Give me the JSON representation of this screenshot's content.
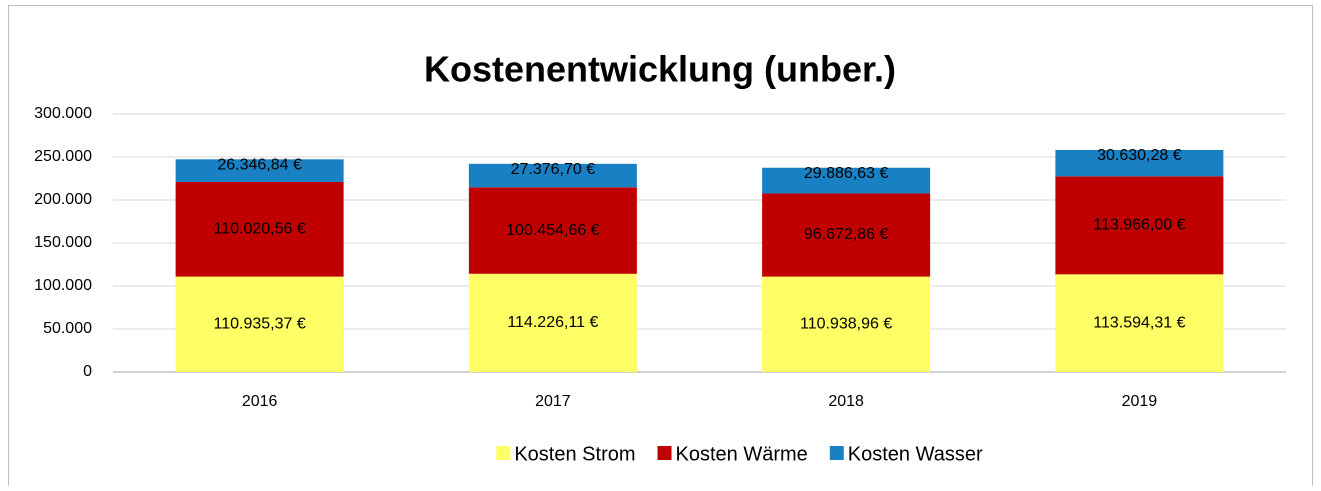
{
  "chart_data": {
    "type": "stacked_bar",
    "title": "Kostenentwicklung (unber.)",
    "categories": [
      "2016",
      "2017",
      "2018",
      "2019"
    ],
    "series": [
      {
        "name": "Kosten Strom",
        "color": "#ffff66",
        "label_color": "#000000",
        "values": [
          110935.37,
          114226.11,
          110938.96,
          113594.31
        ],
        "value_labels": [
          "110.935,37 €",
          "114.226,11 €",
          "110.938,96 €",
          "113.594,31 €"
        ]
      },
      {
        "name": "Kosten Wärme",
        "color": "#c00000",
        "label_color": "#ffffff",
        "values": [
          110020.56,
          100454.66,
          96672.86,
          113966.0
        ],
        "value_labels": [
          "110.020,56 €",
          "100.454,66 €",
          "96.672,86 €",
          "113.966,00 €"
        ]
      },
      {
        "name": "Kosten Wasser",
        "color": "#1a80c4",
        "label_color": "#000000",
        "values": [
          26346.84,
          27376.7,
          29886.63,
          30630.28
        ],
        "value_labels": [
          "26.346,84 €",
          "27.376,70 €",
          "29.886,63 €",
          "30.630,28 €"
        ]
      }
    ],
    "ylim": [
      0,
      300000
    ],
    "yticks": [
      0,
      {
        "value": 50000,
        "label": "50.000"
      },
      {
        "value": 100000,
        "label": "100.000"
      },
      {
        "value": 150000,
        "label": "150.000"
      },
      {
        "value": 200000,
        "label": "200.000"
      },
      {
        "value": 250000,
        "label": "250.000"
      },
      {
        "value": 300000,
        "label": "300.000"
      }
    ],
    "grid": true,
    "legend": "bottom"
  }
}
